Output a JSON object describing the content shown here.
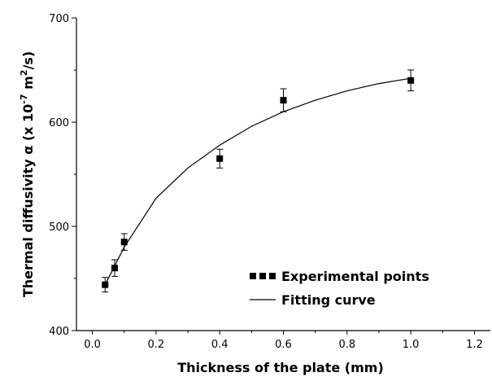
{
  "chart_data": {
    "type": "scatter",
    "xlabel": "Thickness of the plate (mm)",
    "ylabel": "Thermal diffusivity α (x 10",
    "ylabel_exp1": "-7",
    "ylabel_mid": " m",
    "ylabel_exp2": "2",
    "ylabel_end": "/s)",
    "xlim": [
      -0.05,
      1.25
    ],
    "ylim": [
      400,
      700
    ],
    "xticks": [
      "0.0",
      "0.2",
      "0.4",
      "0.6",
      "0.8",
      "1.0",
      "1.2"
    ],
    "xtick_values": [
      0.0,
      0.2,
      0.4,
      0.6,
      0.8,
      1.0,
      1.2
    ],
    "yticks": [
      "400",
      "500",
      "600",
      "700"
    ],
    "ytick_values": [
      400,
      500,
      600,
      700
    ],
    "legend_position": "bottom-right",
    "grid": false,
    "series": [
      {
        "name": "Experimental points",
        "kind": "points",
        "marker": "square",
        "x": [
          0.04,
          0.07,
          0.1,
          0.4,
          0.6,
          1.0
        ],
        "y": [
          444,
          460,
          485,
          565,
          621,
          640
        ],
        "error": [
          7,
          8,
          8,
          9,
          11,
          10
        ]
      },
      {
        "name": "Fitting curve",
        "kind": "line",
        "x": [
          0.04,
          0.1,
          0.2,
          0.3,
          0.4,
          0.5,
          0.6,
          0.7,
          0.8,
          0.9,
          1.0
        ],
        "y": [
          444,
          480,
          527,
          556,
          578,
          596,
          610,
          621,
          630,
          637,
          642
        ]
      }
    ],
    "colors": {
      "axis": "#000000",
      "marker": "#000000",
      "line": "#000000"
    }
  }
}
